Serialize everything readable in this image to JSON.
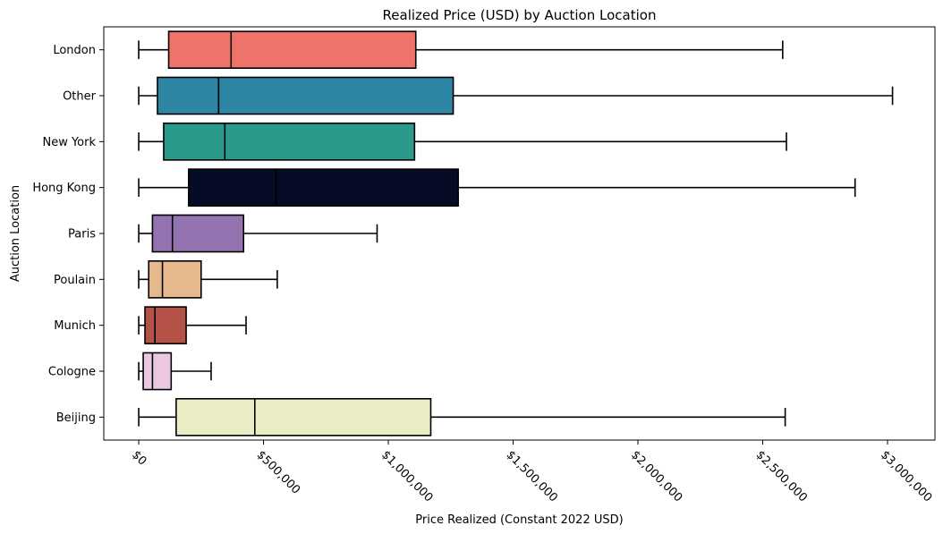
{
  "chart_data": {
    "type": "boxplot",
    "orientation": "horizontal",
    "title": "Realized Price (USD) by Auction Location",
    "xlabel": "Price Realized (Constant 2022 USD)",
    "ylabel": "Auction Location",
    "xlim": [
      -140000,
      3190000
    ],
    "xticks": [
      {
        "value": 0,
        "label": "$0"
      },
      {
        "value": 500000,
        "label": "$500,000"
      },
      {
        "value": 1000000,
        "label": "$1,000,000"
      },
      {
        "value": 1500000,
        "label": "$1,500,000"
      },
      {
        "value": 2000000,
        "label": "$2,000,000"
      },
      {
        "value": 2500000,
        "label": "$2,500,000"
      },
      {
        "value": 3000000,
        "label": "$3,000,000"
      }
    ],
    "grid": false,
    "legend": "none",
    "categories": [
      "London",
      "Other",
      "New York",
      "Hong Kong",
      "Paris",
      "Poulain",
      "Munich",
      "Cologne",
      "Beijing"
    ],
    "boxes": [
      {
        "category": "London",
        "whisker_low": 0,
        "q1": 120000,
        "median": 370000,
        "q3": 1110000,
        "whisker_high": 2580000,
        "color": "#ee746b"
      },
      {
        "category": "Other",
        "whisker_low": 0,
        "q1": 75000,
        "median": 320000,
        "q3": 1260000,
        "whisker_high": 3020000,
        "color": "#2d86a4"
      },
      {
        "category": "New York",
        "whisker_low": 0,
        "q1": 100000,
        "median": 345000,
        "q3": 1105000,
        "whisker_high": 2595000,
        "color": "#2a9a8b"
      },
      {
        "category": "Hong Kong",
        "whisker_low": 0,
        "q1": 200000,
        "median": 550000,
        "q3": 1280000,
        "whisker_high": 2870000,
        "color": "#060b26"
      },
      {
        "category": "Paris",
        "whisker_low": 0,
        "q1": 55000,
        "median": 135000,
        "q3": 420000,
        "whisker_high": 955000,
        "color": "#9374b1"
      },
      {
        "category": "Poulain",
        "whisker_low": 0,
        "q1": 40000,
        "median": 95000,
        "q3": 250000,
        "whisker_high": 555000,
        "color": "#e5b88e"
      },
      {
        "category": "Munich",
        "whisker_low": 0,
        "q1": 25000,
        "median": 65000,
        "q3": 190000,
        "whisker_high": 430000,
        "color": "#b45247"
      },
      {
        "category": "Cologne",
        "whisker_low": 0,
        "q1": 18000,
        "median": 55000,
        "q3": 130000,
        "whisker_high": 290000,
        "color": "#ecc7e2"
      },
      {
        "category": "Beijing",
        "whisker_low": 0,
        "q1": 150000,
        "median": 465000,
        "q3": 1170000,
        "whisker_high": 2590000,
        "color": "#ebedc5"
      }
    ]
  }
}
